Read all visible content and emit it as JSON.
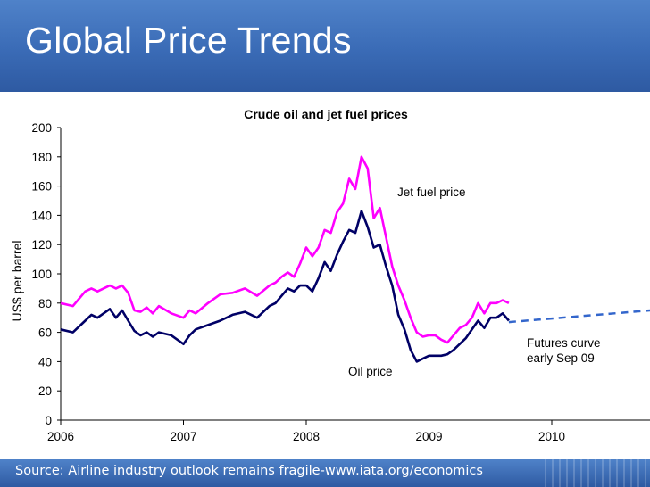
{
  "slide": {
    "title": "Global Price Trends",
    "source": "Source: Airline industry outlook remains fragile-www.iata.org/economics"
  },
  "colors": {
    "header": "#3a6bb6",
    "jet": "#ff00ff",
    "oil": "#000066",
    "futures": "#3366cc"
  },
  "chart_data": {
    "type": "line",
    "title": "Crude oil and jet fuel prices",
    "xlabel": "",
    "ylabel": "US$ per barrel",
    "xlim": [
      2006,
      2010.8
    ],
    "ylim": [
      0,
      200
    ],
    "x_ticks": [
      2006,
      2007,
      2008,
      2009,
      2010
    ],
    "x_tick_labels": [
      "2006",
      "2007",
      "2008",
      "2009",
      "2010"
    ],
    "y_ticks": [
      0,
      20,
      40,
      60,
      80,
      100,
      120,
      140,
      160,
      180,
      200
    ],
    "y_tick_labels": [
      "0",
      "20",
      "40",
      "60",
      "80",
      "100",
      "120",
      "140",
      "160",
      "180",
      "200"
    ],
    "series": [
      {
        "name": "Jet fuel price",
        "label": "Jet fuel price",
        "style": "solid",
        "x": [
          2006.0,
          2006.1,
          2006.2,
          2006.25,
          2006.3,
          2006.4,
          2006.45,
          2006.5,
          2006.55,
          2006.6,
          2006.65,
          2006.7,
          2006.75,
          2006.8,
          2006.9,
          2007.0,
          2007.05,
          2007.1,
          2007.2,
          2007.3,
          2007.4,
          2007.5,
          2007.6,
          2007.7,
          2007.75,
          2007.8,
          2007.85,
          2007.9,
          2007.95,
          2008.0,
          2008.05,
          2008.1,
          2008.15,
          2008.2,
          2008.25,
          2008.3,
          2008.35,
          2008.4,
          2008.45,
          2008.5,
          2008.55,
          2008.6,
          2008.65,
          2008.7,
          2008.75,
          2008.8,
          2008.85,
          2008.9,
          2008.95,
          2009.0,
          2009.05,
          2009.1,
          2009.15,
          2009.2,
          2009.25,
          2009.3,
          2009.35,
          2009.4,
          2009.45,
          2009.5,
          2009.55,
          2009.6,
          2009.65
        ],
        "y": [
          80,
          78,
          88,
          90,
          88,
          92,
          90,
          92,
          87,
          75,
          74,
          77,
          73,
          78,
          73,
          70,
          75,
          73,
          80,
          86,
          87,
          90,
          85,
          92,
          94,
          98,
          101,
          98,
          107,
          118,
          112,
          118,
          130,
          128,
          142,
          148,
          165,
          158,
          180,
          172,
          138,
          145,
          125,
          105,
          92,
          82,
          70,
          60,
          57,
          58,
          58,
          55,
          53,
          58,
          63,
          65,
          70,
          80,
          73,
          80,
          80,
          82,
          80
        ]
      },
      {
        "name": "Oil price",
        "label": "Oil price",
        "style": "solid",
        "x": [
          2006.0,
          2006.1,
          2006.2,
          2006.25,
          2006.3,
          2006.4,
          2006.45,
          2006.5,
          2006.55,
          2006.6,
          2006.65,
          2006.7,
          2006.75,
          2006.8,
          2006.9,
          2007.0,
          2007.05,
          2007.1,
          2007.2,
          2007.3,
          2007.4,
          2007.5,
          2007.6,
          2007.7,
          2007.75,
          2007.8,
          2007.85,
          2007.9,
          2007.95,
          2008.0,
          2008.05,
          2008.1,
          2008.15,
          2008.2,
          2008.25,
          2008.3,
          2008.35,
          2008.4,
          2008.45,
          2008.5,
          2008.55,
          2008.6,
          2008.65,
          2008.7,
          2008.75,
          2008.8,
          2008.85,
          2008.9,
          2008.95,
          2009.0,
          2009.05,
          2009.1,
          2009.15,
          2009.2,
          2009.25,
          2009.3,
          2009.35,
          2009.4,
          2009.45,
          2009.5,
          2009.55,
          2009.6,
          2009.65
        ],
        "y": [
          62,
          60,
          68,
          72,
          70,
          76,
          70,
          75,
          68,
          61,
          58,
          60,
          57,
          60,
          58,
          52,
          58,
          62,
          65,
          68,
          72,
          74,
          70,
          78,
          80,
          85,
          90,
          88,
          92,
          92,
          88,
          97,
          108,
          102,
          113,
          122,
          130,
          128,
          143,
          132,
          118,
          120,
          105,
          92,
          72,
          62,
          48,
          40,
          42,
          44,
          44,
          44,
          45,
          48,
          52,
          56,
          62,
          68,
          63,
          70,
          70,
          73,
          68
        ]
      },
      {
        "name": "Futures curve early Sep 09",
        "label_lines": [
          "Futures curve",
          "early Sep 09"
        ],
        "style": "dashed",
        "x": [
          2009.65,
          2010.8
        ],
        "y": [
          67,
          75
        ]
      }
    ]
  }
}
